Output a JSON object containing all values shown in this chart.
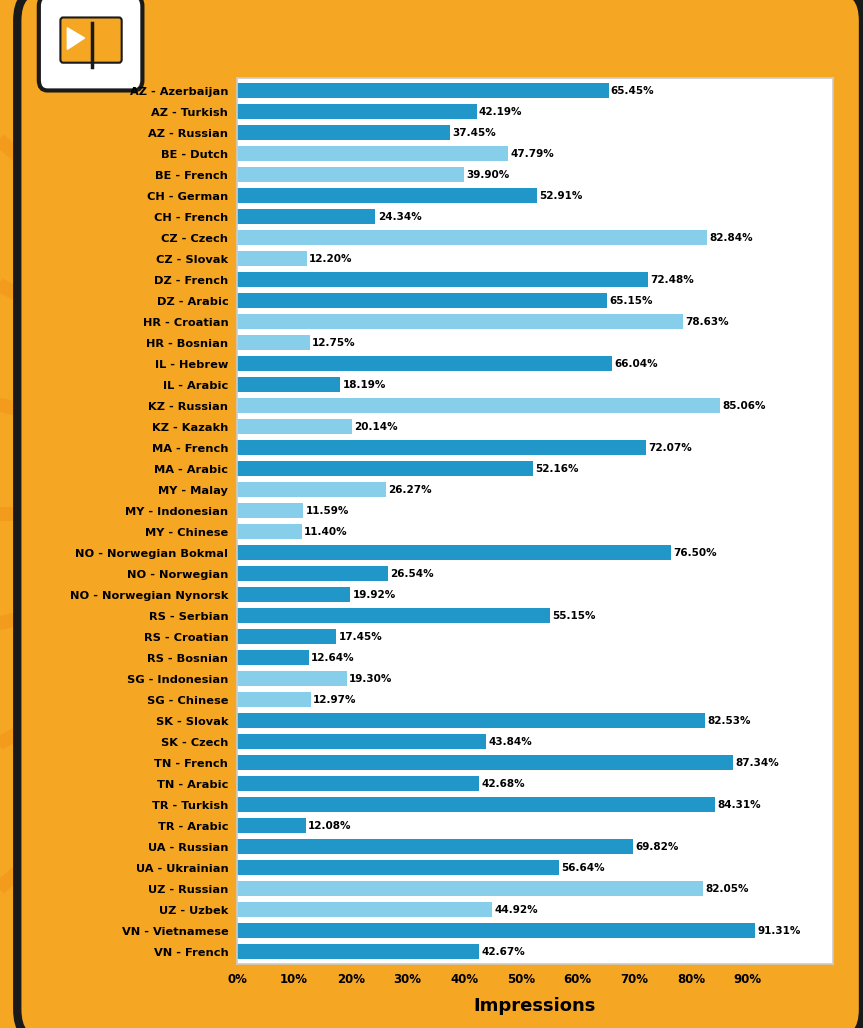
{
  "categories": [
    "AZ - Azerbaijan",
    "AZ - Turkish",
    "AZ - Russian",
    "BE - Dutch",
    "BE - French",
    "CH - German",
    "CH - French",
    "CZ - Czech",
    "CZ - Slovak",
    "DZ - French",
    "DZ - Arabic",
    "HR - Croatian",
    "HR - Bosnian",
    "IL - Hebrew",
    "IL - Arabic",
    "KZ - Russian",
    "KZ - Kazakh",
    "MA - French",
    "MA - Arabic",
    "MY - Malay",
    "MY - Indonesian",
    "MY - Chinese",
    "NO - Norwegian Bokmal",
    "NO - Norwegian",
    "NO - Norwegian Nynorsk",
    "RS - Serbian",
    "RS - Croatian",
    "RS - Bosnian",
    "SG - Indonesian",
    "SG - Chinese",
    "SK - Slovak",
    "SK - Czech",
    "TN - French",
    "TN - Arabic",
    "TR - Turkish",
    "TR - Arabic",
    "UA - Russian",
    "UA - Ukrainian",
    "UZ - Russian",
    "UZ - Uzbek",
    "VN - Vietnamese",
    "VN - French"
  ],
  "values": [
    65.45,
    42.19,
    37.45,
    47.79,
    39.9,
    52.91,
    24.34,
    82.84,
    12.2,
    72.48,
    65.15,
    78.63,
    12.75,
    66.04,
    18.19,
    85.06,
    20.14,
    72.07,
    52.16,
    26.27,
    11.59,
    11.4,
    76.5,
    26.54,
    19.92,
    55.15,
    17.45,
    12.64,
    19.3,
    12.97,
    82.53,
    43.84,
    87.34,
    42.68,
    84.31,
    12.08,
    69.82,
    56.64,
    82.05,
    44.92,
    91.31,
    42.67
  ],
  "bar_colors": [
    "#2196C9",
    "#2196C9",
    "#2196C9",
    "#87CEEB",
    "#87CEEB",
    "#2196C9",
    "#2196C9",
    "#87CEEB",
    "#87CEEB",
    "#2196C9",
    "#2196C9",
    "#87CEEB",
    "#87CEEB",
    "#2196C9",
    "#2196C9",
    "#87CEEB",
    "#87CEEB",
    "#2196C9",
    "#2196C9",
    "#87CEEB",
    "#87CEEB",
    "#87CEEB",
    "#2196C9",
    "#2196C9",
    "#2196C9",
    "#2196C9",
    "#2196C9",
    "#2196C9",
    "#87CEEB",
    "#87CEEB",
    "#2196C9",
    "#2196C9",
    "#2196C9",
    "#2196C9",
    "#2196C9",
    "#2196C9",
    "#2196C9",
    "#2196C9",
    "#87CEEB",
    "#87CEEB",
    "#2196C9",
    "#2196C9"
  ],
  "xlabel": "Impressions",
  "xlim": [
    0,
    100
  ],
  "xtick_labels": [
    "0%",
    "10%",
    "20%",
    "30%",
    "40%",
    "50%",
    "60%",
    "70%",
    "80%",
    "90%"
  ],
  "xtick_vals": [
    0,
    10,
    20,
    30,
    40,
    50,
    60,
    70,
    80,
    90
  ],
  "bg_outer": "#F5A623",
  "bg_chart": "#FFFFFF",
  "bar_label_fontsize": 7.5,
  "xlabel_fontsize": 13,
  "sunburst_color": "#F0951A",
  "frame_color": "#1A1A1A",
  "logo_bg": "#FFFFFF",
  "logo_fg": "#F5A623"
}
